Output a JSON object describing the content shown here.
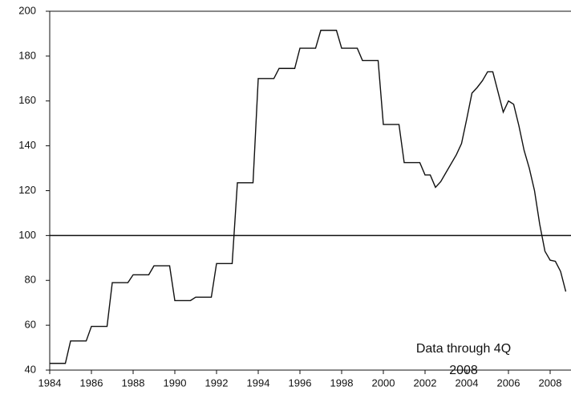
{
  "chart_data": {
    "type": "line",
    "x": [
      1984.0,
      1984.75,
      1985.0,
      1985.75,
      1986.0,
      1986.75,
      1987.0,
      1987.75,
      1988.0,
      1988.75,
      1989.0,
      1989.75,
      1990.0,
      1990.75,
      1991.0,
      1991.75,
      1992.0,
      1992.75,
      1993.0,
      1993.75,
      1994.0,
      1994.75,
      1995.0,
      1995.75,
      1996.0,
      1996.75,
      1997.0,
      1997.75,
      1998.0,
      1998.75,
      1999.0,
      1999.75,
      2000.0,
      2000.75,
      2001.0,
      2001.75,
      2002.0,
      2002.25,
      2002.5,
      2002.75,
      2003.0,
      2003.5,
      2003.75,
      2004.0,
      2004.25,
      2004.5,
      2004.75,
      2005.0,
      2005.25,
      2005.5,
      2005.75,
      2006.0,
      2006.25,
      2006.5,
      2006.75,
      2007.0,
      2007.25,
      2007.5,
      2007.75,
      2008.0,
      2008.25,
      2008.5,
      2008.75
    ],
    "series": [
      {
        "color": "#111111",
        "values": [
          43,
          43,
          53,
          53,
          59.5,
          59.5,
          79,
          79,
          82.5,
          82.5,
          86.5,
          86.5,
          71,
          71,
          72.5,
          72.5,
          87.5,
          87.5,
          123.5,
          123.5,
          170,
          170,
          174.5,
          174.5,
          183.5,
          183.5,
          191.5,
          191.5,
          183.5,
          183.5,
          178,
          178,
          149.5,
          149.5,
          132.5,
          132.5,
          127,
          127,
          121.5,
          124,
          128,
          136,
          141,
          152,
          163.5,
          166,
          169,
          173,
          173,
          164,
          155,
          160,
          158.5,
          149,
          138,
          130,
          120,
          105,
          93,
          89,
          88.5,
          84,
          75
        ]
      }
    ],
    "xlim": [
      1984,
      2009
    ],
    "ylim": [
      40,
      200
    ],
    "xticks": [
      1984,
      1986,
      1988,
      1990,
      1992,
      1994,
      1996,
      1998,
      2000,
      2002,
      2004,
      2006,
      2008
    ],
    "yticks": [
      40,
      60,
      80,
      100,
      120,
      140,
      160,
      180,
      200
    ],
    "reference_line": 100,
    "annotation": [
      "Data through 4Q",
      "2008"
    ]
  }
}
